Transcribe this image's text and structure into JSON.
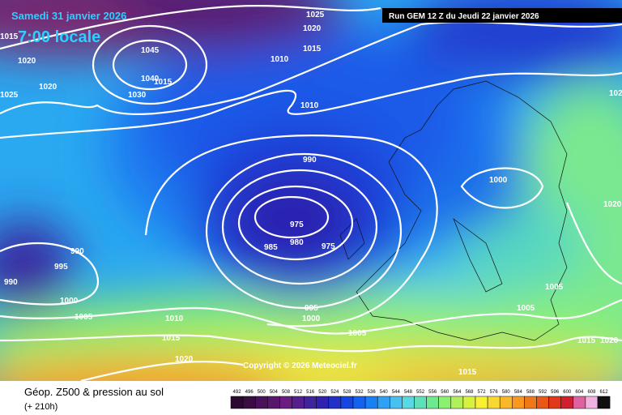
{
  "header": {
    "date": "Samedi 31 janvier 2026",
    "time": "7:00 locale",
    "run": "Run GEM 12 Z du Jeudi 22 janvier 2026"
  },
  "isobar_labels": [
    "1015",
    "1020",
    "1020",
    "1025",
    "1045",
    "1040",
    "1015",
    "1030",
    "1025",
    "1020",
    "1015",
    "1010",
    "1010",
    "102",
    "990",
    "1000",
    "1020",
    "975",
    "985",
    "980",
    "975",
    "990",
    "995",
    "990",
    "1000",
    "1005",
    "1005",
    "1005",
    "995",
    "1000",
    "1010",
    "1015",
    "1020",
    "1005",
    "1015",
    "1020",
    "1015"
  ],
  "copyright": "Copyright © 2026 Meteociel.fr",
  "legend": {
    "title": "Géop. Z500 & pression au sol",
    "lead": "(+ 210h)",
    "scale": [
      492,
      496,
      500,
      504,
      508,
      512,
      516,
      520,
      524,
      528,
      532,
      536,
      540,
      544,
      548,
      552,
      556,
      560,
      564,
      568,
      572,
      576,
      580,
      584,
      588,
      592,
      596,
      600,
      604,
      608,
      612
    ],
    "colors": [
      "#2a0830",
      "#3a0c44",
      "#4a1058",
      "#5a166c",
      "#6a1c80",
      "#55208e",
      "#40249c",
      "#2e22b0",
      "#2030c8",
      "#1646e0",
      "#1462f0",
      "#1a80f5",
      "#30a0f5",
      "#48c0f0",
      "#58d8e0",
      "#60e0b8",
      "#70e890",
      "#8cf070",
      "#b0f058",
      "#d8f040",
      "#f8f030",
      "#f8d830",
      "#f8b828",
      "#f89820",
      "#f07818",
      "#e85818",
      "#e03818",
      "#d02030",
      "#e060a0",
      "#f0b0e0",
      "#101010"
    ]
  }
}
